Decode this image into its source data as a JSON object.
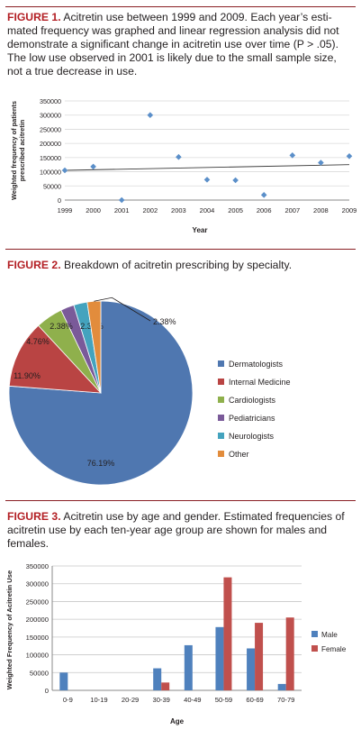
{
  "figures": [
    {
      "label": "FIGURE 1.",
      "caption": "Acitretin use between 1999 and 2009. Each year’s esti­mated frequency was graphed and linear regression analysis did not demonstrate a significant change in acitretin use over time (P > .05). The low use observed in 2001 is likely due to the small sample size, not a true decrease in use."
    },
    {
      "label": "FIGURE 2.",
      "caption": "Breakdown of acitretin prescribing by specialty."
    },
    {
      "label": "FIGURE 3.",
      "caption": "Acitretin use by age and gender. Estimated frequencies of acitretin use by each ten-year age group are shown for males and females."
    }
  ],
  "chart_data": [
    {
      "type": "scatter",
      "title": "",
      "xlabel": "Year",
      "ylabel": "Weighted frequency of patients prescribed acitretin",
      "ylim": [
        0,
        350000
      ],
      "yticks": [
        "350000",
        "300000",
        "250000",
        "200000",
        "150000",
        "100000",
        "50000",
        "0"
      ],
      "x": [
        "1999",
        "2000",
        "2001",
        "2002",
        "2003",
        "2004",
        "2005",
        "2006",
        "2007",
        "2008",
        "2009"
      ],
      "values": [
        105000,
        118000,
        0,
        300000,
        152000,
        72000,
        70000,
        18000,
        158000,
        132000,
        155000
      ],
      "trendline": {
        "start": 105000,
        "end": 125000
      },
      "marker_color": "#5b8fc9",
      "grid": true
    },
    {
      "type": "pie",
      "slices": [
        {
          "name": "Dermatologists",
          "value": 76.19,
          "label": "76.19%",
          "color": "#4f77b0"
        },
        {
          "name": "Internal Medicine",
          "value": 11.9,
          "label": "11.90%",
          "color": "#b94443"
        },
        {
          "name": "Cardiologists",
          "value": 4.76,
          "label": "4.76%",
          "color": "#8fb04c"
        },
        {
          "name": "Pediatricians",
          "value": 2.38,
          "label": "2.38%",
          "color": "#7a5a99"
        },
        {
          "name": "Neurologists",
          "value": 2.38,
          "label": "2.38%",
          "color": "#44a3be"
        },
        {
          "name": "Other",
          "value": 2.38,
          "label": "2.38%",
          "color": "#e28c3c"
        }
      ],
      "legend": "right"
    },
    {
      "type": "bar",
      "title": "",
      "xlabel": "Age",
      "ylabel": "Weighted Frequency of Acitretin Use",
      "ylim": [
        0,
        350000
      ],
      "yticks": [
        "350000",
        "300000",
        "250000",
        "200000",
        "150000",
        "100000",
        "50000",
        "0"
      ],
      "categories": [
        "0-9",
        "10-19",
        "20-29",
        "30-39",
        "40-49",
        "50-59",
        "60-69",
        "70-79"
      ],
      "series": [
        {
          "name": "Male",
          "color": "#4f81bd",
          "values": [
            50000,
            0,
            0,
            62000,
            127000,
            178000,
            118000,
            18000
          ]
        },
        {
          "name": "Female",
          "color": "#c0504d",
          "values": [
            0,
            0,
            0,
            22000,
            0,
            318000,
            190000,
            205000
          ]
        }
      ],
      "legend": "right",
      "grid": true
    }
  ]
}
